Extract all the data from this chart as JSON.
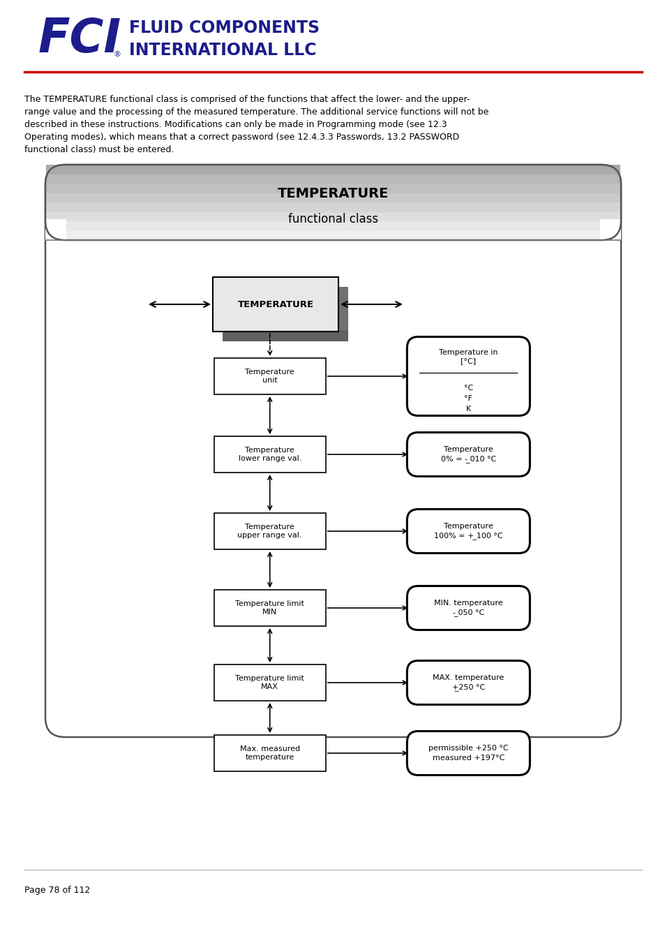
{
  "bg_color": "#ffffff",
  "brand_color": "#1c1c8c",
  "red_line_color": "#cc0000",
  "body_text_lines": [
    "The TEMPERATURE functional class is comprised of the functions that affect the lower- and the upper-",
    "range value and the processing of the measured temperature. The additional service functions will not be",
    "described in these instructions. Modifications can only be made in Programming mode (see 12.3",
    "Operating modes), which means that a correct password (see 12.4.3.3 Passwords, 13.2 PASSWORD",
    "functional class) must be entered."
  ],
  "diagram_title_line1": "TEMPERATURE",
  "diagram_title_line2": "functional class",
  "main_box_label": "TEMPERATURE",
  "left_labels": [
    "Temperature\nunit",
    "Temperature\nlower range val.",
    "Temperature\nupper range val.",
    "Temperature limit\nMIN",
    "Temperature limit\nMAX",
    "Max. measured\ntemperature"
  ],
  "right_label_top": [
    "Temperature in",
    "[°C]"
  ],
  "right_label_bottom": [
    "°C",
    "°F",
    "K"
  ],
  "right_labels_rest": [
    "Temperature\n0% = - ̲010 °C",
    "Temperature\n100% = + ̲100 °C",
    "MIN. temperature\n- ̲050 °C",
    "MAX. temperature\n+̲250 °C",
    "permissible +250 °C\nmeasured +197°C"
  ],
  "footer_text": "Page 78 of 112",
  "stripe_colors": [
    "#aaaaaa",
    "#b8b8b8",
    "#c0c0c0",
    "#cacaca",
    "#d4d4d4",
    "#dedede",
    "#e8e8e8",
    "#f0f0f0"
  ],
  "main_box_fill": "#e0e0e0",
  "main_box_shadow": "#808080",
  "header_bottom_fill": "#f0f0f0"
}
